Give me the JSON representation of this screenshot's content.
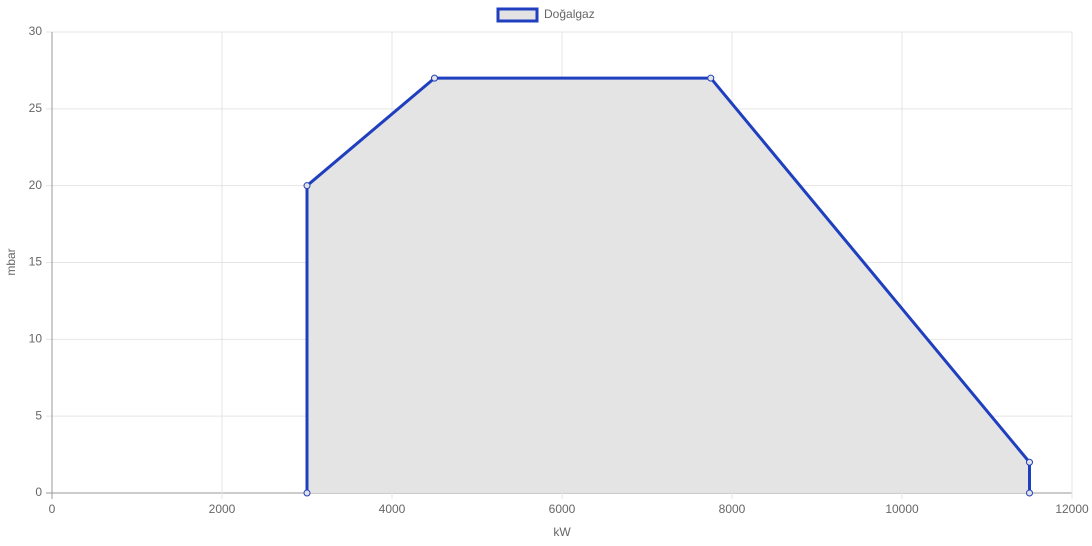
{
  "chart_data": {
    "type": "line",
    "x_label": "kW",
    "y_label": "mbar",
    "x": [
      3000,
      3000,
      4500,
      7750,
      11500,
      11500
    ],
    "series": [
      {
        "name": "Doğalgaz",
        "color": "#1f3fbf",
        "fill": "#e3e3e3",
        "values": [
          0,
          20,
          27,
          27,
          2,
          0
        ]
      }
    ],
    "xlim": [
      0,
      12000
    ],
    "xticks": [
      0,
      2000,
      4000,
      6000,
      8000,
      10000,
      12000
    ],
    "ylim": [
      0,
      30
    ],
    "yticks": [
      0,
      5,
      10,
      15,
      20,
      25,
      30
    ],
    "grid": true,
    "legend": "top"
  }
}
